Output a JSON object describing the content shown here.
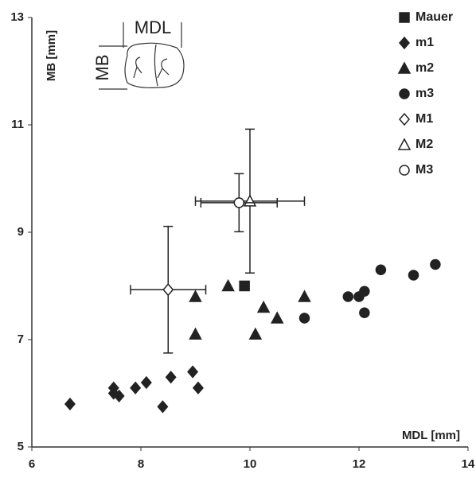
{
  "chart_data": {
    "type": "scatter",
    "xlabel": "MDL [mm]",
    "ylabel": "MB [mm]",
    "xlim": [
      6,
      14
    ],
    "ylim": [
      5,
      13
    ],
    "xticks": [
      6,
      8,
      10,
      12,
      14
    ],
    "yticks": [
      5,
      7,
      9,
      11,
      13
    ],
    "inset_labels": [
      "MDL",
      "MB"
    ],
    "legend": "upper right",
    "series": [
      {
        "name": "Mauer",
        "marker": "square",
        "filled": true,
        "color": "#222",
        "x": [
          9.9
        ],
        "values": [
          8.0
        ]
      },
      {
        "name": "m1",
        "marker": "diamond",
        "filled": true,
        "color": "#222",
        "x": [
          6.7,
          7.5,
          7.5,
          7.6,
          7.9,
          8.1,
          8.4,
          8.55,
          8.95,
          9.05
        ],
        "values": [
          5.8,
          6.1,
          6.0,
          5.95,
          6.1,
          6.2,
          5.75,
          6.3,
          6.4,
          6.1
        ]
      },
      {
        "name": "m2",
        "marker": "triangle",
        "filled": true,
        "color": "#222",
        "x": [
          9.0,
          9.0,
          9.6,
          10.1,
          10.25,
          10.5,
          11.0
        ],
        "values": [
          7.8,
          7.1,
          8.0,
          7.1,
          7.6,
          7.4,
          7.8
        ]
      },
      {
        "name": "m3",
        "marker": "circle",
        "filled": true,
        "color": "#222",
        "x": [
          11.0,
          11.8,
          12.0,
          12.1,
          12.1,
          12.4,
          13.0,
          13.4
        ],
        "values": [
          7.4,
          7.8,
          7.8,
          7.9,
          7.5,
          8.3,
          8.2,
          8.4
        ]
      },
      {
        "name": "M1",
        "marker": "diamond",
        "filled": false,
        "color": "#222",
        "x": [
          8.5
        ],
        "values": [
          7.93
        ],
        "x_err": [
          0.69
        ],
        "y_err": [
          1.18
        ]
      },
      {
        "name": "M2",
        "marker": "triangle",
        "filled": false,
        "color": "#222",
        "x": [
          10.0
        ],
        "values": [
          9.58
        ],
        "x_err": [
          1.0
        ],
        "y_err": [
          1.34
        ]
      },
      {
        "name": "M3",
        "marker": "circle",
        "filled": false,
        "color": "#222",
        "x": [
          9.8
        ],
        "values": [
          9.55
        ],
        "x_err": [
          0.7
        ],
        "y_err": [
          0.54
        ]
      }
    ]
  }
}
